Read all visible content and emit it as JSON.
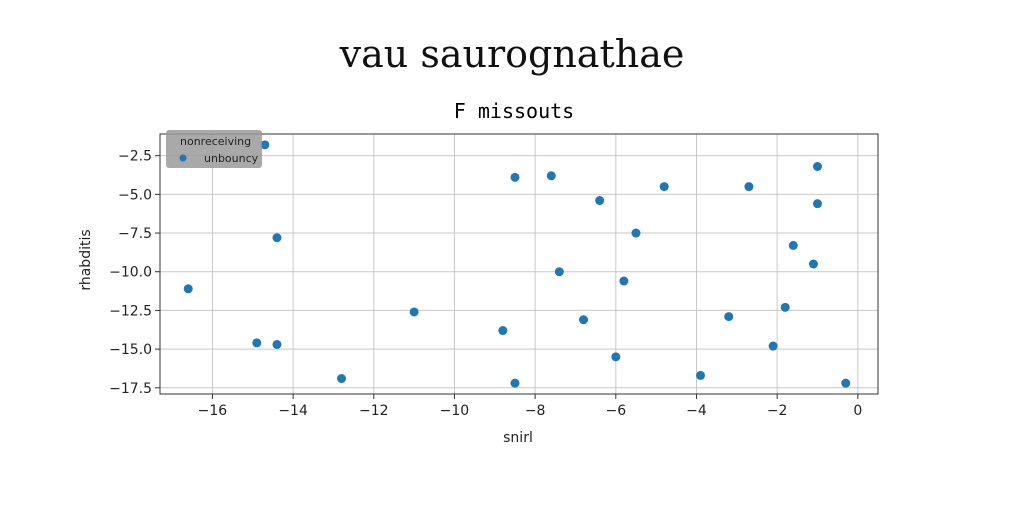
{
  "chart_data": {
    "type": "scatter",
    "suptitle": "vau saurognathae",
    "title": "F missouts",
    "xlabel": "snirl",
    "ylabel": "rhabditis",
    "xlim": [
      -17.3,
      0.5
    ],
    "ylim": [
      -17.9,
      -1.1
    ],
    "xticks": [
      -16,
      -14,
      -12,
      -10,
      -8,
      -6,
      -4,
      -2,
      0
    ],
    "yticks": [
      -2.5,
      -5.0,
      -7.5,
      -10.0,
      -12.5,
      -15.0,
      -17.5
    ],
    "grid": true,
    "legend": {
      "title": "nonreceiving",
      "entries": [
        "unbouncy"
      ],
      "location": "upper left"
    },
    "series": [
      {
        "name": "unbouncy",
        "color": "#1f77b4",
        "points": [
          {
            "x": -14.7,
            "y": -1.8
          },
          {
            "x": -14.4,
            "y": -7.8
          },
          {
            "x": -16.6,
            "y": -11.1
          },
          {
            "x": -14.9,
            "y": -14.6
          },
          {
            "x": -14.4,
            "y": -14.7
          },
          {
            "x": -12.8,
            "y": -16.9
          },
          {
            "x": -11.0,
            "y": -12.6
          },
          {
            "x": -8.5,
            "y": -3.9
          },
          {
            "x": -7.6,
            "y": -3.8
          },
          {
            "x": -8.8,
            "y": -13.8
          },
          {
            "x": -8.5,
            "y": -17.2
          },
          {
            "x": -7.4,
            "y": -10.0
          },
          {
            "x": -6.8,
            "y": -13.1
          },
          {
            "x": -6.4,
            "y": -5.4
          },
          {
            "x": -6.0,
            "y": -15.5
          },
          {
            "x": -5.8,
            "y": -10.6
          },
          {
            "x": -5.5,
            "y": -7.5
          },
          {
            "x": -4.8,
            "y": -4.5
          },
          {
            "x": -3.9,
            "y": -16.7
          },
          {
            "x": -3.2,
            "y": -12.9
          },
          {
            "x": -2.7,
            "y": -4.5
          },
          {
            "x": -2.1,
            "y": -14.8
          },
          {
            "x": -1.8,
            "y": -12.3
          },
          {
            "x": -1.6,
            "y": -8.3
          },
          {
            "x": -1.0,
            "y": -3.2
          },
          {
            "x": -1.0,
            "y": -5.6
          },
          {
            "x": -1.1,
            "y": -9.5
          },
          {
            "x": -0.3,
            "y": -17.2
          }
        ]
      }
    ]
  }
}
